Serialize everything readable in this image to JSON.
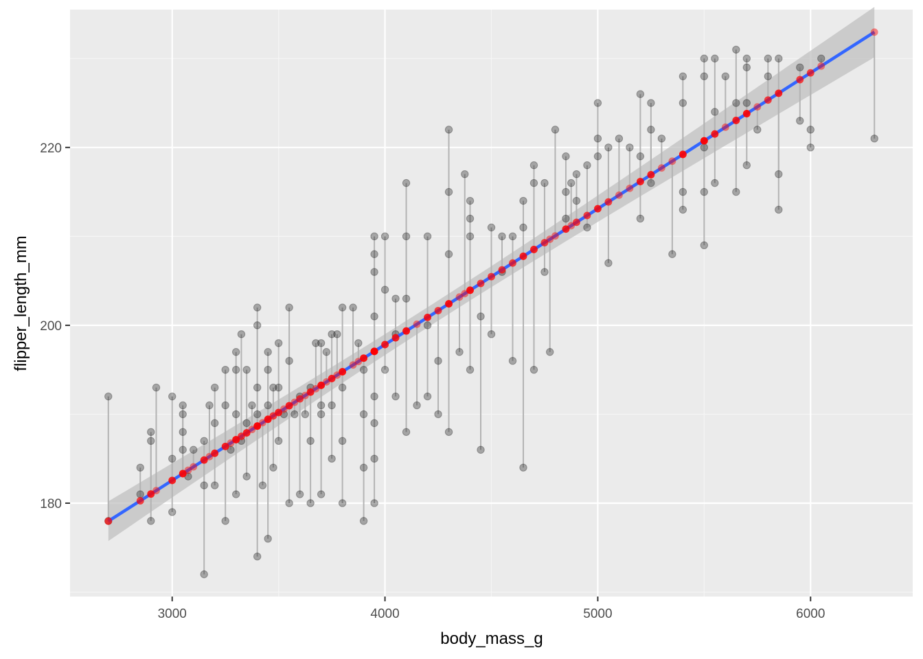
{
  "colors": {
    "panel": "#ebebeb",
    "grid_major": "#ffffff",
    "grid_minor": "#f5f5f5",
    "points": "#000000",
    "segments": "#b3b3b3",
    "fit_line": "#3366ff",
    "confidence_band": "#bdbdbd",
    "fitted_points": "#ff0000"
  },
  "chart_data": {
    "type": "scatter",
    "xlabel": "body_mass_g",
    "ylabel": "flipper_length_mm",
    "xlim": [
      2520,
      6480
    ],
    "ylim": [
      169.5,
      235.5
    ],
    "x_ticks": [
      3000,
      4000,
      5000,
      6000
    ],
    "x_tick_labels": [
      "3000",
      "4000",
      "5000",
      "6000"
    ],
    "y_ticks": [
      180,
      200,
      220
    ],
    "y_tick_labels": [
      "180",
      "200",
      "220"
    ],
    "grid": true,
    "fit": {
      "method": "lm",
      "intercept": 136.73,
      "slope": 0.015276,
      "se_band": true
    },
    "observed": [
      [
        2700,
        192
      ],
      [
        2700,
        178
      ],
      [
        2850,
        184
      ],
      [
        2850,
        181
      ],
      [
        2900,
        187
      ],
      [
        2900,
        188
      ],
      [
        2900,
        178
      ],
      [
        2925,
        193
      ],
      [
        3000,
        192
      ],
      [
        3000,
        185
      ],
      [
        3000,
        179
      ],
      [
        3050,
        191
      ],
      [
        3050,
        190
      ],
      [
        3050,
        188
      ],
      [
        3050,
        186
      ],
      [
        3075,
        183
      ],
      [
        3100,
        186
      ],
      [
        3150,
        187
      ],
      [
        3150,
        182
      ],
      [
        3150,
        172
      ],
      [
        3175,
        191
      ],
      [
        3200,
        193
      ],
      [
        3200,
        189
      ],
      [
        3200,
        182
      ],
      [
        3250,
        195
      ],
      [
        3250,
        191
      ],
      [
        3250,
        178
      ],
      [
        3275,
        186
      ],
      [
        3300,
        197
      ],
      [
        3300,
        195
      ],
      [
        3300,
        190
      ],
      [
        3300,
        181
      ],
      [
        3325,
        199
      ],
      [
        3325,
        187
      ],
      [
        3350,
        195
      ],
      [
        3350,
        189
      ],
      [
        3350,
        183
      ],
      [
        3375,
        191
      ],
      [
        3400,
        202
      ],
      [
        3400,
        200
      ],
      [
        3400,
        193
      ],
      [
        3400,
        190
      ],
      [
        3400,
        174
      ],
      [
        3425,
        182
      ],
      [
        3450,
        197
      ],
      [
        3450,
        195
      ],
      [
        3450,
        191
      ],
      [
        3450,
        176
      ],
      [
        3475,
        193
      ],
      [
        3475,
        184
      ],
      [
        3500,
        198
      ],
      [
        3500,
        193
      ],
      [
        3500,
        187
      ],
      [
        3525,
        190
      ],
      [
        3550,
        196
      ],
      [
        3550,
        202
      ],
      [
        3550,
        180
      ],
      [
        3575,
        190
      ],
      [
        3600,
        192
      ],
      [
        3600,
        181
      ],
      [
        3625,
        190
      ],
      [
        3650,
        193
      ],
      [
        3650,
        187
      ],
      [
        3650,
        180
      ],
      [
        3675,
        198
      ],
      [
        3700,
        198
      ],
      [
        3700,
        191
      ],
      [
        3700,
        190
      ],
      [
        3700,
        181
      ],
      [
        3725,
        197
      ],
      [
        3750,
        199
      ],
      [
        3750,
        191
      ],
      [
        3750,
        185
      ],
      [
        3775,
        199
      ],
      [
        3800,
        202
      ],
      [
        3800,
        193
      ],
      [
        3800,
        187
      ],
      [
        3800,
        180
      ],
      [
        3850,
        202
      ],
      [
        3875,
        198
      ],
      [
        3900,
        195
      ],
      [
        3900,
        190
      ],
      [
        3900,
        184
      ],
      [
        3900,
        178
      ],
      [
        3950,
        210
      ],
      [
        3950,
        208
      ],
      [
        3950,
        206
      ],
      [
        3950,
        201
      ],
      [
        3950,
        192
      ],
      [
        3950,
        189
      ],
      [
        3950,
        185
      ],
      [
        3950,
        180
      ],
      [
        4000,
        210
      ],
      [
        4000,
        204
      ],
      [
        4000,
        195
      ],
      [
        4050,
        203
      ],
      [
        4050,
        199
      ],
      [
        4050,
        192
      ],
      [
        4100,
        216
      ],
      [
        4100,
        210
      ],
      [
        4100,
        203
      ],
      [
        4100,
        188
      ],
      [
        4150,
        191
      ],
      [
        4200,
        210
      ],
      [
        4200,
        200
      ],
      [
        4200,
        192
      ],
      [
        4250,
        196
      ],
      [
        4250,
        190
      ],
      [
        4300,
        222
      ],
      [
        4300,
        215
      ],
      [
        4300,
        208
      ],
      [
        4300,
        188
      ],
      [
        4350,
        197
      ],
      [
        4375,
        217
      ],
      [
        4400,
        214
      ],
      [
        4400,
        210
      ],
      [
        4400,
        195
      ],
      [
        4400,
        212
      ],
      [
        4450,
        186
      ],
      [
        4450,
        201
      ],
      [
        4500,
        211
      ],
      [
        4500,
        199
      ],
      [
        4550,
        210
      ],
      [
        4550,
        206
      ],
      [
        4600,
        210
      ],
      [
        4600,
        196
      ],
      [
        4650,
        211
      ],
      [
        4650,
        214
      ],
      [
        4650,
        184
      ],
      [
        4700,
        218
      ],
      [
        4700,
        216
      ],
      [
        4700,
        195
      ],
      [
        4750,
        216
      ],
      [
        4750,
        206
      ],
      [
        4775,
        197
      ],
      [
        4800,
        222
      ],
      [
        4850,
        219
      ],
      [
        4850,
        215
      ],
      [
        4850,
        212
      ],
      [
        4875,
        216
      ],
      [
        4900,
        217
      ],
      [
        4900,
        214
      ],
      [
        4950,
        218
      ],
      [
        4950,
        211
      ],
      [
        5000,
        225
      ],
      [
        5000,
        221
      ],
      [
        5000,
        219
      ],
      [
        5050,
        220
      ],
      [
        5050,
        207
      ],
      [
        5100,
        221
      ],
      [
        5150,
        220
      ],
      [
        5200,
        226
      ],
      [
        5200,
        219
      ],
      [
        5200,
        212
      ],
      [
        5250,
        225
      ],
      [
        5250,
        222
      ],
      [
        5250,
        216
      ],
      [
        5300,
        221
      ],
      [
        5350,
        208
      ],
      [
        5400,
        228
      ],
      [
        5400,
        225
      ],
      [
        5400,
        215
      ],
      [
        5400,
        213
      ],
      [
        5500,
        230
      ],
      [
        5500,
        228
      ],
      [
        5500,
        220
      ],
      [
        5500,
        215
      ],
      [
        5500,
        209
      ],
      [
        5550,
        230
      ],
      [
        5550,
        224
      ],
      [
        5550,
        216
      ],
      [
        5600,
        228
      ],
      [
        5650,
        231
      ],
      [
        5650,
        225
      ],
      [
        5650,
        215
      ],
      [
        5700,
        230
      ],
      [
        5700,
        229
      ],
      [
        5700,
        225
      ],
      [
        5700,
        218
      ],
      [
        5750,
        222
      ],
      [
        5800,
        230
      ],
      [
        5800,
        228
      ],
      [
        5850,
        230
      ],
      [
        5850,
        217
      ],
      [
        5850,
        213
      ],
      [
        5950,
        229
      ],
      [
        5950,
        223
      ],
      [
        6000,
        222
      ],
      [
        6000,
        220
      ],
      [
        6050,
        230
      ],
      [
        6300,
        221
      ]
    ]
  }
}
